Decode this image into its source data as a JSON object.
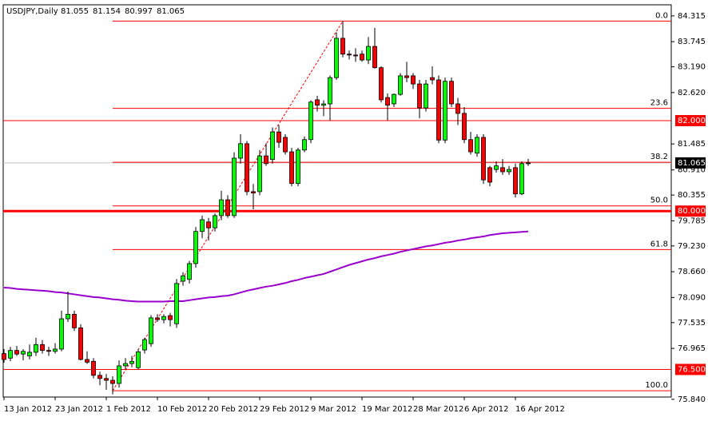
{
  "chart_data": {
    "type": "candlestick",
    "title": "USDJPY,Daily",
    "categories": [
      "13 Jan 2012",
      null,
      null,
      null,
      null,
      null,
      null,
      null,
      "23 Jan 2012",
      null,
      null,
      null,
      null,
      null,
      null,
      null,
      "1 Feb 2012",
      null,
      null,
      null,
      null,
      null,
      null,
      null,
      "10 Feb 2012",
      null,
      null,
      null,
      null,
      null,
      null,
      null,
      "20 Feb 2012",
      null,
      null,
      null,
      null,
      null,
      null,
      null,
      "29 Feb 2012",
      null,
      null,
      null,
      null,
      null,
      null,
      null,
      "9 Mar 2012",
      null,
      null,
      null,
      null,
      null,
      null,
      null,
      "19 Mar 2012",
      null,
      null,
      null,
      null,
      null,
      null,
      null,
      "28 Mar 2012",
      null,
      null,
      null,
      null,
      null,
      null,
      null,
      "6 Apr 2012",
      null,
      null,
      null,
      null,
      null,
      null,
      null,
      "16 Apr 2012",
      null,
      null
    ],
    "open": [
      76.85,
      76.75,
      76.92,
      76.84,
      76.8,
      76.88,
      77.05,
      76.92,
      76.9,
      76.95,
      77.62,
      77.72,
      77.42,
      76.72,
      76.68,
      76.37,
      76.3,
      76.26,
      76.19,
      76.58,
      76.63,
      76.54,
      76.93,
      77.07,
      77.64,
      77.6,
      77.69,
      77.51,
      78.45,
      78.49,
      78.84,
      79.55,
      79.76,
      79.63,
      79.9,
      80.25,
      79.9,
      81.17,
      81.49,
      80.43,
      80.43,
      81.22,
      81.14,
      81.75,
      81.63,
      81.31,
      80.61,
      81.35,
      81.58,
      82.46,
      82.34,
      82.37,
      82.95,
      83.82,
      83.47,
      83.45,
      83.47,
      83.34,
      83.64,
      83.17,
      82.51,
      82.37,
      82.58,
      82.99,
      82.99,
      82.81,
      82.28,
      82.95,
      82.9,
      81.57,
      82.87,
      82.37,
      82.16,
      81.58,
      81.28,
      81.63,
      80.96,
      80.92,
      80.96,
      80.87,
      80.96,
      80.38,
      81.055
    ],
    "high": [
      76.95,
      77.0,
      77.02,
      76.95,
      77.05,
      77.2,
      77.15,
      77.0,
      77.08,
      77.8,
      78.22,
      77.8,
      77.5,
      76.9,
      76.75,
      76.45,
      76.4,
      76.35,
      76.7,
      76.75,
      76.8,
      76.95,
      77.2,
      77.7,
      77.72,
      77.72,
      77.75,
      78.5,
      78.65,
      78.9,
      79.65,
      79.9,
      79.85,
      79.95,
      80.45,
      80.35,
      81.3,
      81.7,
      81.55,
      80.6,
      81.35,
      81.5,
      81.85,
      81.9,
      81.7,
      81.4,
      81.4,
      81.65,
      82.45,
      82.55,
      82.45,
      83.0,
      83.95,
      84.2,
      83.55,
      83.6,
      83.55,
      83.85,
      84.05,
      83.2,
      82.6,
      82.6,
      83.05,
      83.3,
      83.05,
      82.9,
      82.9,
      83.2,
      83.0,
      82.95,
      82.95,
      82.5,
      82.3,
      81.75,
      81.7,
      81.7,
      81.0,
      81.1,
      81.15,
      81.0,
      81.05,
      81.1,
      81.154
    ],
    "low": [
      76.65,
      76.68,
      76.8,
      76.7,
      76.72,
      76.8,
      76.85,
      76.8,
      76.85,
      76.9,
      77.55,
      77.35,
      76.7,
      76.62,
      76.3,
      76.15,
      76.05,
      75.95,
      76.1,
      76.5,
      76.55,
      76.5,
      76.85,
      77.0,
      77.55,
      77.52,
      77.45,
      77.42,
      78.35,
      78.4,
      78.75,
      79.4,
      79.35,
      79.55,
      79.8,
      79.85,
      79.85,
      81.05,
      80.35,
      80.04,
      80.35,
      81.0,
      81.05,
      81.4,
      81.25,
      80.55,
      80.55,
      81.3,
      81.5,
      82.2,
      82.1,
      82.0,
      82.9,
      83.4,
      83.35,
      83.3,
      83.3,
      83.25,
      83.15,
      82.4,
      82.0,
      82.3,
      82.55,
      82.85,
      82.7,
      82.05,
      82.2,
      82.8,
      81.5,
      81.5,
      82.3,
      81.9,
      81.5,
      81.25,
      81.2,
      80.6,
      80.55,
      80.85,
      80.8,
      80.8,
      80.3,
      80.35,
      80.997
    ],
    "close": [
      76.72,
      76.92,
      76.84,
      76.9,
      76.88,
      77.05,
      76.92,
      76.9,
      76.95,
      77.62,
      77.72,
      77.42,
      76.72,
      76.66,
      76.37,
      76.3,
      76.26,
      76.19,
      76.58,
      76.63,
      76.68,
      76.89,
      77.16,
      77.64,
      77.6,
      77.67,
      77.6,
      78.4,
      78.57,
      78.84,
      79.55,
      79.81,
      79.63,
      79.9,
      80.25,
      79.9,
      81.17,
      81.49,
      80.43,
      80.4,
      81.22,
      81.05,
      81.75,
      81.52,
      81.31,
      80.61,
      81.35,
      81.58,
      82.41,
      82.34,
      82.37,
      82.95,
      83.82,
      83.47,
      83.45,
      83.43,
      83.34,
      83.64,
      83.17,
      82.46,
      82.34,
      82.58,
      82.99,
      82.95,
      82.81,
      82.28,
      82.81,
      82.9,
      81.57,
      82.87,
      82.37,
      82.16,
      81.58,
      81.31,
      81.63,
      80.69,
      80.64,
      81.0,
      80.87,
      80.92,
      80.38,
      81.05,
      81.065
    ],
    "bull_color": "#00ff00",
    "bear_color": "#ff0000",
    "ma": {
      "color": "#9900cc",
      "values": [
        78.31,
        78.3,
        78.28,
        78.27,
        78.26,
        78.25,
        78.24,
        78.23,
        78.21,
        78.2,
        78.18,
        78.16,
        78.14,
        78.12,
        78.1,
        78.09,
        78.07,
        78.05,
        78.04,
        78.02,
        78.01,
        78.0,
        78.0,
        78.0,
        78.0,
        78.0,
        78.01,
        78.01,
        78.01,
        78.03,
        78.05,
        78.07,
        78.09,
        78.1,
        78.12,
        78.13,
        78.16,
        78.2,
        78.24,
        78.27,
        78.3,
        78.33,
        78.35,
        78.38,
        78.41,
        78.45,
        78.48,
        78.52,
        78.55,
        78.58,
        78.61,
        78.66,
        78.71,
        78.76,
        78.81,
        78.85,
        78.89,
        78.93,
        78.96,
        79.0,
        79.03,
        79.06,
        79.1,
        79.13,
        79.16,
        79.19,
        79.22,
        79.24,
        79.27,
        79.3,
        79.32,
        79.35,
        79.37,
        79.4,
        79.42,
        79.44,
        79.47,
        79.49,
        79.51,
        79.52,
        79.53,
        79.54,
        79.55
      ]
    },
    "levels": [
      {
        "value": 82.0,
        "label": "82.000",
        "color": "#ff0000",
        "width": 1
      },
      {
        "value": 80.0,
        "label": "80.000",
        "color": "#ff0000",
        "width": 3
      },
      {
        "value": 76.5,
        "label": "76.500",
        "color": "#ff0000",
        "width": 1
      }
    ],
    "fib": {
      "color": "#ff0000",
      "levels": [
        {
          "value": 84.2,
          "label": "0.0"
        },
        {
          "value": 82.27,
          "label": "23.6"
        },
        {
          "value": 81.08,
          "label": "38.2"
        },
        {
          "value": 80.115,
          "label": "50.0"
        },
        {
          "value": 79.15,
          "label": "61.8"
        },
        {
          "value": 76.03,
          "label": "100.0"
        }
      ]
    },
    "ylim": [
      75.89,
      84.56
    ],
    "yticks": [
      84.315,
      83.745,
      {
        "value": 83.19,
        "label": "83.190"
      },
      {
        "value": 82.62,
        "label": "82.620"
      },
      81.485,
      {
        "value": 80.91,
        "label": "80.910"
      },
      80.355,
      79.785,
      {
        "value": 79.23,
        "label": "79.230"
      },
      {
        "value": 78.66,
        "label": "78.660"
      },
      {
        "value": 78.09,
        "label": "78.090"
      },
      77.535,
      76.965,
      {
        "value": 75.84,
        "label": "75.840"
      }
    ]
  }
}
